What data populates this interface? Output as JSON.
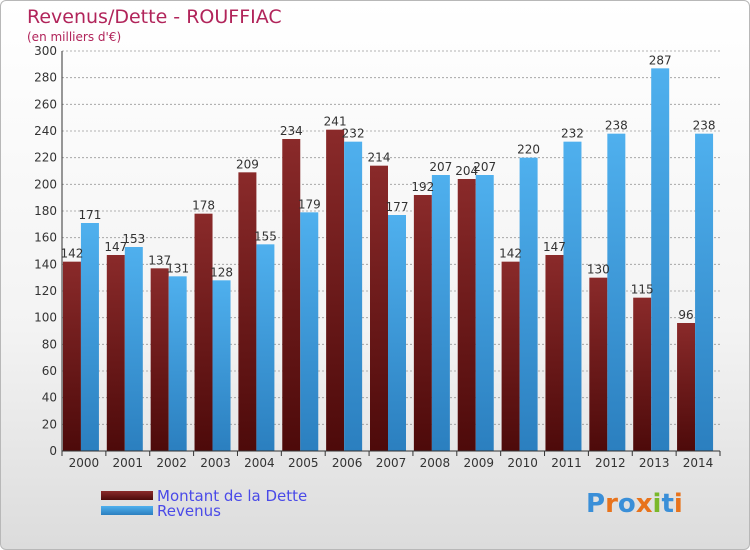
{
  "chart_data": {
    "type": "bar",
    "title": "Revenus/Dette - ROUFFIAC",
    "subtitle": "(en milliers d'€)",
    "categories": [
      "2000",
      "2001",
      "2002",
      "2003",
      "2004",
      "2005",
      "2006",
      "2007",
      "2008",
      "2009",
      "2010",
      "2011",
      "2012",
      "2013",
      "2014"
    ],
    "series": [
      {
        "name": "Montant de la Dette",
        "color": "#7a1c1c",
        "values": [
          142,
          147,
          137,
          178,
          209,
          234,
          241,
          214,
          192,
          204,
          142,
          147,
          130,
          115,
          96
        ]
      },
      {
        "name": "Revenus",
        "color": "#3f9fe0",
        "values": [
          171,
          153,
          131,
          128,
          155,
          179,
          232,
          177,
          207,
          207,
          220,
          232,
          238,
          287,
          238
        ]
      }
    ],
    "ylim": [
      0,
      300
    ],
    "yticks": [
      0,
      20,
      40,
      60,
      80,
      100,
      120,
      140,
      160,
      180,
      200,
      220,
      240,
      260,
      280,
      300
    ],
    "grid": true,
    "legend_position": "bottom-left"
  },
  "logo": {
    "letters": [
      "P",
      "r",
      "o",
      "x",
      "i",
      "t",
      "i"
    ],
    "colors": [
      "#3a8fd8",
      "#e8731c",
      "#3a8fd8",
      "#e8731c",
      "#7ab82a",
      "#3a8fd8",
      "#e8731c"
    ]
  }
}
